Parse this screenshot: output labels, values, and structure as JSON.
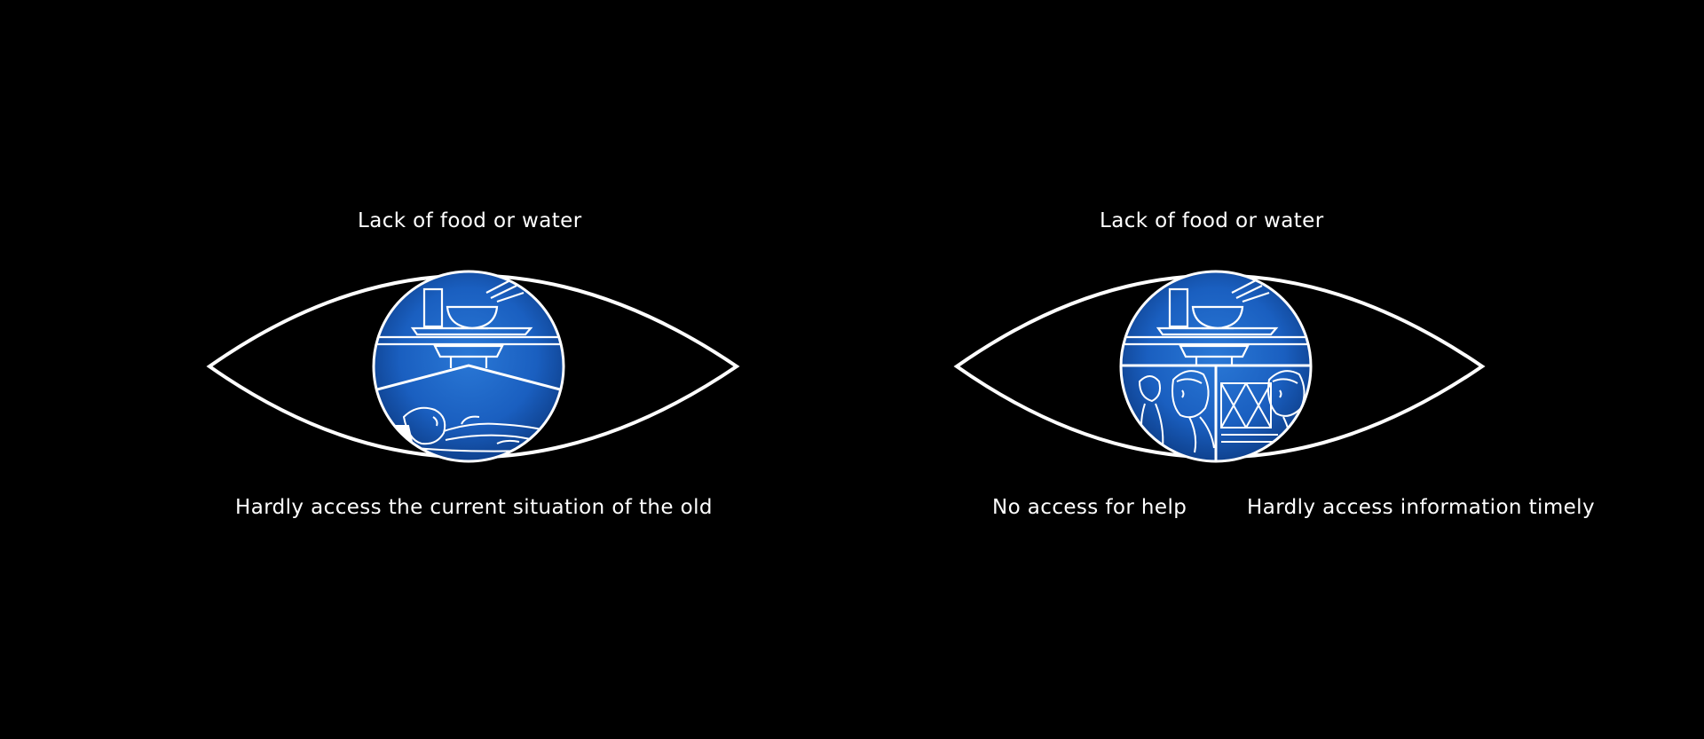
{
  "eyes": [
    {
      "top_label": "Lack of food or water",
      "bottom_labels": [
        "Hardly access the current situation of the old"
      ],
      "iris_scenes": [
        "table-with-bowl",
        "elderly-lying-in-bed"
      ]
    },
    {
      "top_label": "Lack of food or water",
      "bottom_labels": [
        "No access for help",
        "Hardly access information timely"
      ],
      "iris_scenes": [
        "table-with-bowl",
        "worried-people",
        "people-behind-barrier"
      ]
    }
  ],
  "colors": {
    "background": "#000000",
    "outline": "#ffffff",
    "iris_blue": "#1a5fc0",
    "iris_dark": "#0c3a82"
  }
}
